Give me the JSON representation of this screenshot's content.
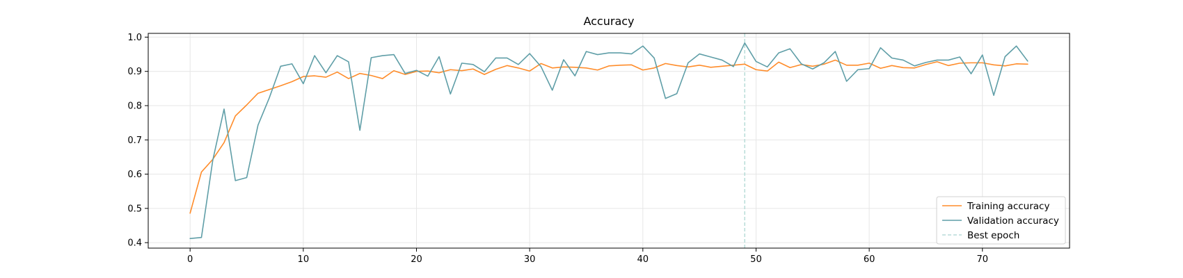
{
  "chart_data": {
    "type": "line",
    "title": "Accuracy",
    "xlabel": "",
    "ylabel": "",
    "xlim": [
      -3.7,
      77.7
    ],
    "ylim": [
      0.384,
      1.011
    ],
    "x_ticks": [
      0,
      10,
      20,
      30,
      40,
      50,
      60,
      70
    ],
    "y_ticks": [
      0.4,
      0.5,
      0.6,
      0.7,
      0.8,
      0.9,
      1.0
    ],
    "x_tick_labels": [
      "0",
      "10",
      "20",
      "30",
      "40",
      "50",
      "60",
      "70"
    ],
    "y_tick_labels": [
      "0.4",
      "0.5",
      "0.6",
      "0.7",
      "0.8",
      "0.9",
      "1.0"
    ],
    "grid": true,
    "legend_position": "lower-right",
    "best_epoch": 49,
    "best_epoch_label": "Best epoch",
    "best_epoch_color": "#b7dcd8",
    "series": [
      {
        "name": "Training accuracy",
        "color": "#ff8c2a",
        "values": [
          0.486,
          0.606,
          0.643,
          0.692,
          0.77,
          0.802,
          0.836,
          0.847,
          0.858,
          0.87,
          0.885,
          0.887,
          0.883,
          0.898,
          0.879,
          0.894,
          0.888,
          0.879,
          0.902,
          0.891,
          0.9,
          0.901,
          0.896,
          0.905,
          0.902,
          0.907,
          0.891,
          0.906,
          0.917,
          0.91,
          0.901,
          0.923,
          0.91,
          0.913,
          0.912,
          0.91,
          0.904,
          0.916,
          0.918,
          0.919,
          0.904,
          0.91,
          0.923,
          0.917,
          0.913,
          0.918,
          0.912,
          0.915,
          0.918,
          0.921,
          0.905,
          0.901,
          0.927,
          0.911,
          0.92,
          0.915,
          0.921,
          0.933,
          0.918,
          0.918,
          0.924,
          0.909,
          0.917,
          0.911,
          0.91,
          0.92,
          0.928,
          0.917,
          0.924,
          0.925,
          0.925,
          0.919,
          0.916,
          0.922,
          0.921
        ]
      },
      {
        "name": "Validation accuracy",
        "color": "#5f9ea7",
        "values": [
          0.412,
          0.415,
          0.64,
          0.79,
          0.581,
          0.59,
          0.743,
          0.823,
          0.915,
          0.922,
          0.864,
          0.946,
          0.896,
          0.946,
          0.928,
          0.728,
          0.94,
          0.946,
          0.949,
          0.894,
          0.903,
          0.886,
          0.943,
          0.834,
          0.924,
          0.92,
          0.899,
          0.939,
          0.939,
          0.92,
          0.952,
          0.914,
          0.845,
          0.934,
          0.887,
          0.958,
          0.949,
          0.954,
          0.954,
          0.951,
          0.974,
          0.939,
          0.821,
          0.835,
          0.925,
          0.951,
          0.942,
          0.933,
          0.914,
          0.983,
          0.929,
          0.913,
          0.954,
          0.966,
          0.922,
          0.907,
          0.925,
          0.958,
          0.871,
          0.905,
          0.908,
          0.969,
          0.939,
          0.933,
          0.916,
          0.926,
          0.933,
          0.933,
          0.942,
          0.893,
          0.948,
          0.83,
          0.943,
          0.974,
          0.93
        ]
      }
    ]
  }
}
